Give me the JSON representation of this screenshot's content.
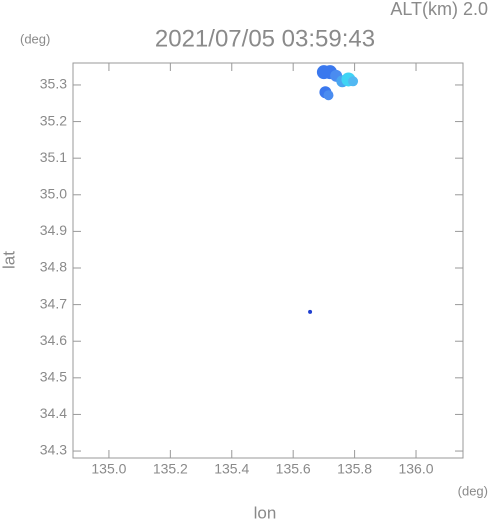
{
  "chart_data": {
    "type": "scatter",
    "title": "2021/07/05 03:59:43",
    "subtitle": "ALT(km) 2.0",
    "y_unit": "(deg)",
    "x_unit": "(deg)",
    "ylabel": "lat",
    "xlabel": "lon",
    "x": [
      135.7,
      135.72,
      135.74,
      135.76,
      135.78,
      135.795,
      135.705,
      135.715,
      135.655
    ],
    "y": [
      35.335,
      35.335,
      35.325,
      35.31,
      35.315,
      35.31,
      35.28,
      35.272,
      34.68
    ],
    "sizes": [
      7,
      7,
      6,
      6,
      7,
      5,
      6,
      5,
      2
    ],
    "colors": [
      "#3a78ee",
      "#3a78ee",
      "#4a8cf0",
      "#4aa6f0",
      "#40d4f4",
      "#52b8f2",
      "#3a78ee",
      "#4a8cf0",
      "#2040d0"
    ],
    "xlim": [
      134.883,
      136.153
    ],
    "ylim": [
      34.281,
      35.36
    ],
    "xticks": [
      {
        "value": 135.0,
        "label": "135.0"
      },
      135.2,
      135.4,
      135.6,
      135.8,
      {
        "value": 136.0,
        "label": "136.0"
      }
    ],
    "yticks": [
      34.3,
      34.4,
      34.5,
      34.6,
      34.7,
      34.8,
      34.9,
      {
        "value": 35.0,
        "label": "35.0"
      },
      35.1,
      35.2,
      35.3
    ]
  }
}
